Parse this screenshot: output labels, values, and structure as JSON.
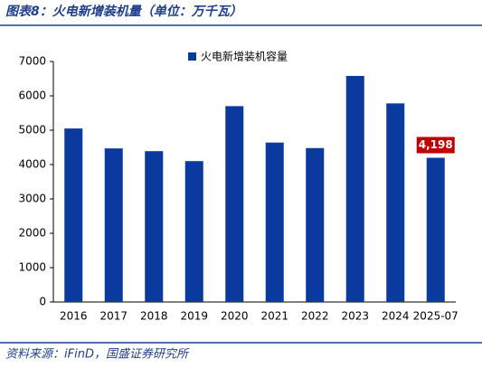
{
  "chart_data": {
    "type": "bar",
    "title": "图表8：火电新增装机量（单位：万千瓦）",
    "source": "资料来源：iFinD，国盛证券研究所",
    "categories": [
      "2016",
      "2017",
      "2018",
      "2019",
      "2020",
      "2021",
      "2022",
      "2023",
      "2024",
      "2025-07"
    ],
    "series": [
      {
        "name": "火电新增装机容量",
        "color": "#0b3a9e",
        "values": [
          5050,
          4470,
          4390,
          4100,
          5700,
          4640,
          4480,
          6580,
          5780,
          4198
        ],
        "value_labels": [
          null,
          null,
          null,
          null,
          null,
          null,
          null,
          null,
          null,
          "4,198"
        ]
      }
    ],
    "ylim": [
      0,
      7000
    ],
    "yticks": [
      0,
      1000,
      2000,
      3000,
      4000,
      5000,
      6000,
      7000
    ],
    "grid": false,
    "legend": "top",
    "value_label_color": "#c00000"
  }
}
